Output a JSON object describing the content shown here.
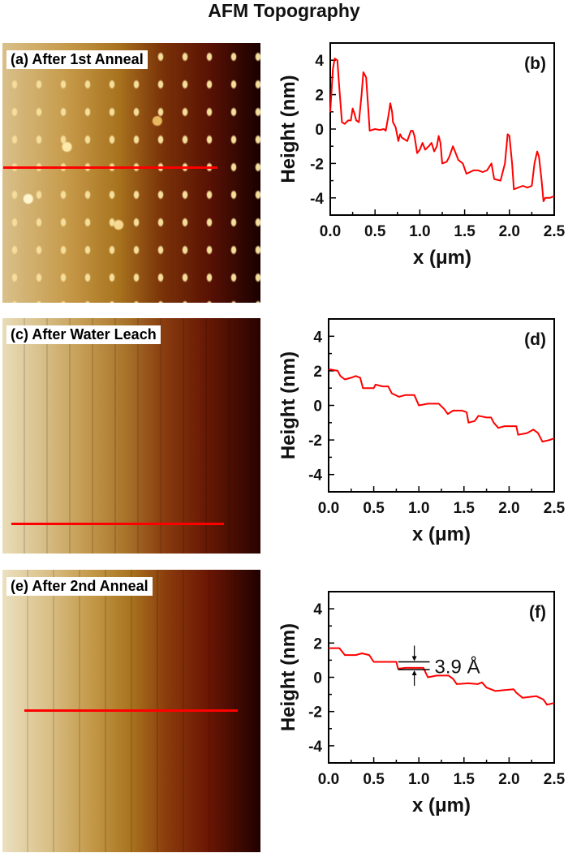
{
  "title": "AFM Topography",
  "images": [
    {
      "label": "(a) After 1st Anneal"
    },
    {
      "label": "(c) After Water Leach"
    },
    {
      "label": "(e) After 2nd Anneal"
    }
  ],
  "colors": {
    "profile_line": "#ff0000",
    "axis": "#000000"
  },
  "chart_data": [
    {
      "type": "line",
      "panel_label": "(b)",
      "xlabel": "x (μm)",
      "ylabel": "Height (nm)",
      "xlim": [
        0,
        2.5
      ],
      "ylim": [
        -5,
        5
      ],
      "xticks": [
        "0.0",
        "0.5",
        "1.0",
        "1.5",
        "2.0",
        "2.5"
      ],
      "yticks": [
        "-4",
        "-2",
        "0",
        "2",
        "4"
      ],
      "grid": false,
      "x": [
        0,
        0.03,
        0.05,
        0.08,
        0.1,
        0.13,
        0.16,
        0.2,
        0.23,
        0.25,
        0.27,
        0.29,
        0.32,
        0.35,
        0.37,
        0.4,
        0.42,
        0.44,
        0.5,
        0.55,
        0.6,
        0.62,
        0.65,
        0.67,
        0.69,
        0.7,
        0.73,
        0.76,
        0.78,
        0.8,
        0.83,
        0.86,
        0.9,
        0.92,
        0.94,
        0.97,
        1.0,
        1.03,
        1.06,
        1.1,
        1.13,
        1.16,
        1.19,
        1.21,
        1.23,
        1.25,
        1.3,
        1.33,
        1.37,
        1.4,
        1.43,
        1.48,
        1.52,
        1.6,
        1.65,
        1.7,
        1.75,
        1.8,
        1.83,
        1.9,
        1.95,
        1.98,
        2.0,
        2.03,
        2.05,
        2.1,
        2.15,
        2.2,
        2.25,
        2.28,
        2.31,
        2.33,
        2.36,
        2.38,
        2.4,
        2.45,
        2.5
      ],
      "y": [
        1.0,
        3.5,
        4.1,
        4.0,
        2.5,
        0.4,
        0.3,
        0.5,
        0.5,
        1.2,
        0.9,
        0.5,
        0.4,
        2.0,
        3.3,
        3.0,
        1.5,
        -0.1,
        0,
        -0.05,
        0,
        -0.1,
        0.8,
        1.5,
        1.0,
        0.4,
        0.1,
        -0.7,
        -0.3,
        -0.5,
        -0.6,
        -0.7,
        -0.1,
        -0.1,
        -0.4,
        -1.4,
        -1.2,
        -0.8,
        -1.2,
        -1.0,
        -0.8,
        -1.3,
        -1.0,
        -0.4,
        -0.8,
        -2.0,
        -1.9,
        -1.6,
        -1.0,
        -1.4,
        -1.8,
        -2.0,
        -2.6,
        -2.4,
        -2.4,
        -2.5,
        -2.4,
        -2.0,
        -2.9,
        -3.0,
        -2.0,
        -0.3,
        -0.4,
        -2.0,
        -3.5,
        -3.4,
        -3.3,
        -3.4,
        -3.3,
        -2.0,
        -1.3,
        -1.6,
        -3.0,
        -4.2,
        -4.0,
        -4.0,
        -3.9
      ]
    },
    {
      "type": "line",
      "panel_label": "(d)",
      "xlabel": "x (μm)",
      "ylabel": "Height (nm)",
      "xlim": [
        0,
        2.5
      ],
      "ylim": [
        -5,
        5
      ],
      "xticks": [
        "0.0",
        "0.5",
        "1.0",
        "1.5",
        "2.0",
        "2.5"
      ],
      "yticks": [
        "-4",
        "-2",
        "0",
        "2",
        "4"
      ],
      "grid": false,
      "x": [
        0,
        0.1,
        0.13,
        0.18,
        0.25,
        0.3,
        0.35,
        0.38,
        0.45,
        0.5,
        0.52,
        0.6,
        0.66,
        0.7,
        0.78,
        0.85,
        0.95,
        1.0,
        1.1,
        1.22,
        1.28,
        1.32,
        1.38,
        1.48,
        1.53,
        1.55,
        1.62,
        1.66,
        1.75,
        1.8,
        1.83,
        1.88,
        1.95,
        2.05,
        2.08,
        2.1,
        2.2,
        2.27,
        2.32,
        2.37,
        2.45,
        2.5
      ],
      "y": [
        2.1,
        2.0,
        1.7,
        1.5,
        1.6,
        1.7,
        1.6,
        1.0,
        1.0,
        1.0,
        1.2,
        1.1,
        1.1,
        0.7,
        0.5,
        0.6,
        0.6,
        0.0,
        0.1,
        0.1,
        -0.2,
        -0.5,
        -0.3,
        -0.3,
        -0.4,
        -1.0,
        -0.9,
        -0.6,
        -0.7,
        -0.7,
        -1.0,
        -1.3,
        -1.2,
        -1.2,
        -1.2,
        -1.7,
        -1.6,
        -1.4,
        -1.6,
        -2.1,
        -2.0,
        -1.9
      ]
    },
    {
      "type": "line",
      "panel_label": "(f)",
      "xlabel": "x (μm)",
      "ylabel": "Height (nm)",
      "xlim": [
        0,
        2.5
      ],
      "ylim": [
        -5,
        5
      ],
      "xticks": [
        "0.0",
        "0.5",
        "1.0",
        "1.5",
        "2.0",
        "2.5"
      ],
      "yticks": [
        "-4",
        "-2",
        "0",
        "2",
        "4"
      ],
      "grid": false,
      "annotation": {
        "text": "3.9 Å",
        "x_range": [
          0.77,
          1.12
        ],
        "y_levels": [
          0.9,
          0.45
        ],
        "arrow_x": 0.95
      },
      "x": [
        0,
        0.12,
        0.18,
        0.3,
        0.37,
        0.45,
        0.5,
        0.6,
        0.75,
        0.77,
        0.85,
        1.05,
        1.1,
        1.2,
        1.33,
        1.38,
        1.42,
        1.55,
        1.65,
        1.7,
        1.75,
        1.8,
        1.85,
        1.95,
        2.05,
        2.08,
        2.15,
        2.3,
        2.38,
        2.42,
        2.5
      ],
      "y": [
        1.7,
        1.7,
        1.3,
        1.3,
        1.4,
        1.3,
        0.9,
        0.9,
        0.9,
        0.5,
        0.55,
        0.55,
        0.0,
        0.1,
        0.1,
        -0.1,
        -0.4,
        -0.35,
        -0.4,
        -0.3,
        -0.6,
        -0.7,
        -0.8,
        -0.75,
        -0.7,
        -0.9,
        -1.2,
        -1.1,
        -1.3,
        -1.6,
        -1.5
      ]
    }
  ]
}
